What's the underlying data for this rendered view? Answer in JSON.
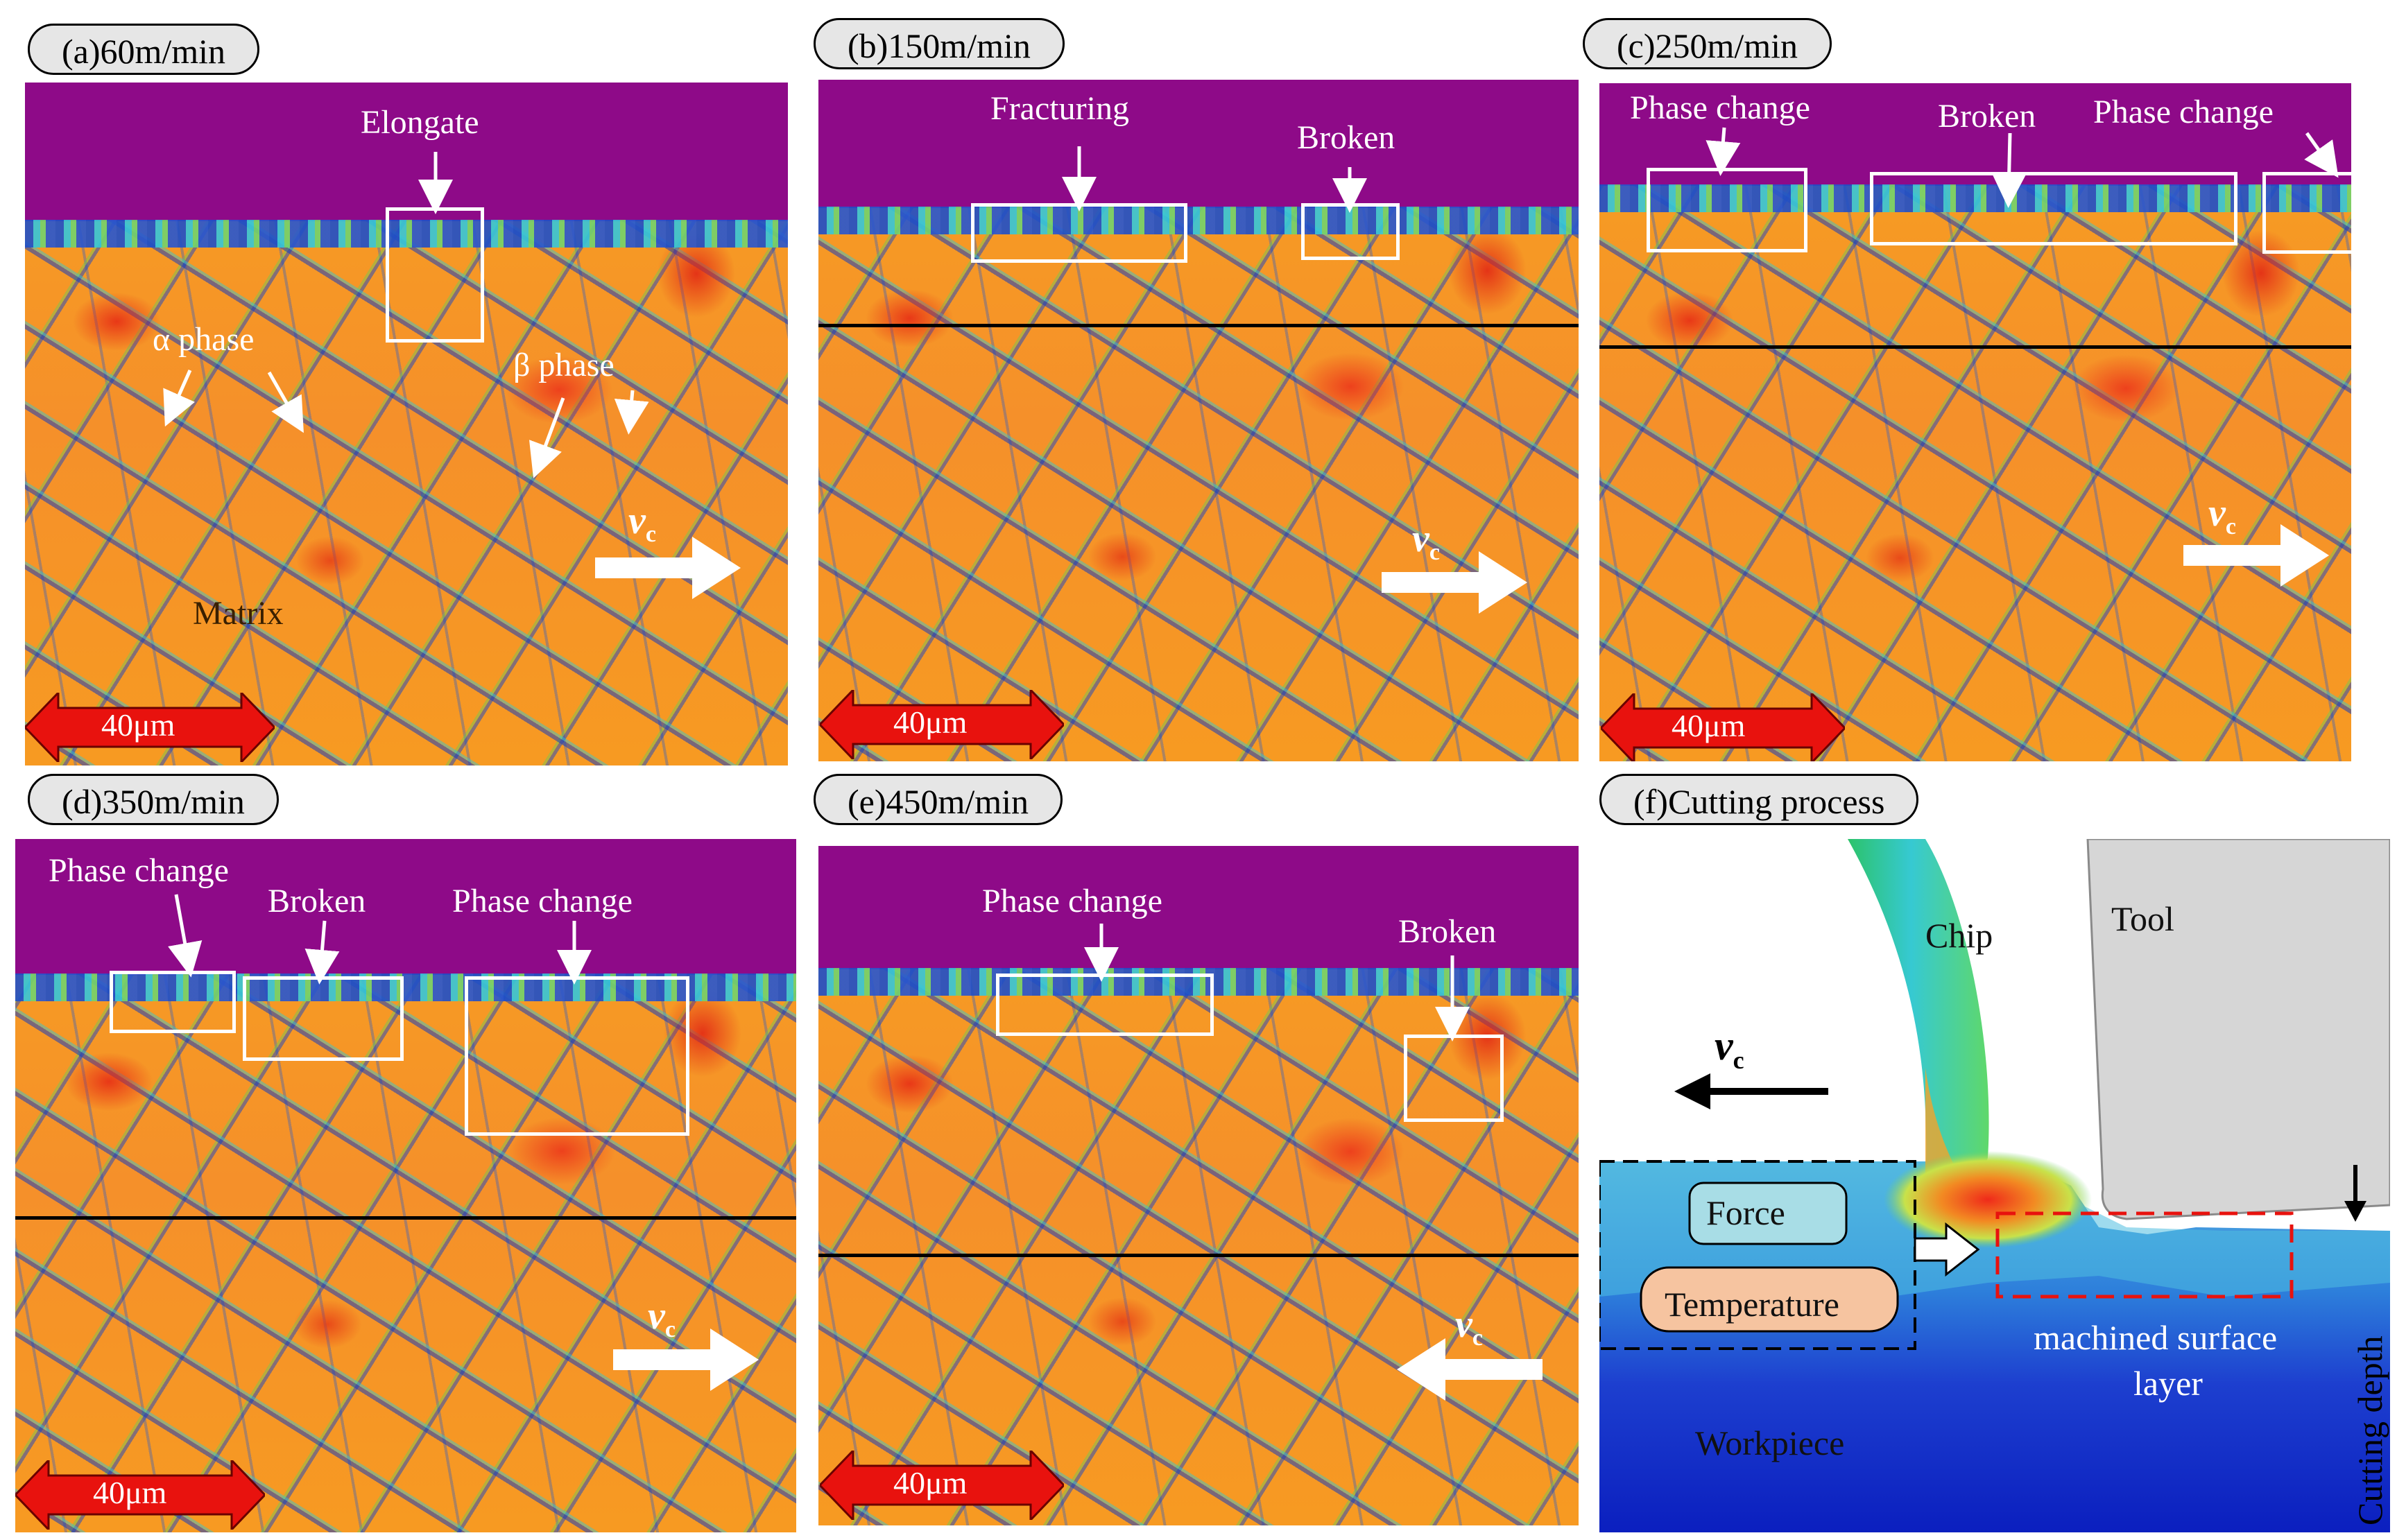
{
  "panels": {
    "a": {
      "label": "(a)60m/min",
      "annotations": {
        "elongate": "Elongate",
        "alpha_phase": "α phase",
        "beta_phase": "β phase",
        "matrix": "Matrix"
      },
      "scale_bar": "40μm",
      "velocity_symbol": "v",
      "velocity_sub": "c"
    },
    "b": {
      "label": "(b)150m/min",
      "annotations": {
        "fracturing": "Fracturing",
        "broken": "Broken"
      },
      "scale_bar": "40μm",
      "velocity_symbol": "v",
      "velocity_sub": "c"
    },
    "c": {
      "label": "(c)250m/min",
      "annotations": {
        "phase_change_left": "Phase change",
        "broken": "Broken",
        "phase_change_right": "Phase change"
      },
      "scale_bar": "40μm",
      "velocity_symbol": "v",
      "velocity_sub": "c"
    },
    "d": {
      "label": "(d)350m/min",
      "annotations": {
        "phase_change_left": "Phase change",
        "broken": "Broken",
        "phase_change_right": "Phase change"
      },
      "scale_bar": "40μm",
      "velocity_symbol": "v",
      "velocity_sub": "c"
    },
    "e": {
      "label": "(e)450m/min",
      "annotations": {
        "phase_change": "Phase change",
        "broken": "Broken"
      },
      "scale_bar": "40μm",
      "velocity_symbol": "v",
      "velocity_sub": "c"
    },
    "f": {
      "label": "(f)Cutting process",
      "labels": {
        "chip": "Chip",
        "tool": "Tool",
        "velocity_symbol": "v",
        "velocity_sub": "c",
        "force": "Force",
        "temperature": "Temperature",
        "machined_surface_line1": "machined surface",
        "machined_surface_line2": "layer",
        "workpiece": "Workpiece",
        "cutting_depth": "Cutting depth"
      }
    }
  },
  "colors": {
    "top_band": "#8e0a88",
    "grain_orange": "#f7a020",
    "grain_red": "#e6281a",
    "boundary_blue": "#1e4fc8",
    "scale_bar_red": "#e8120e",
    "force_fill": "#a8dde6",
    "temperature_fill": "#f6c4a0",
    "tool_gray": "#d6d6d6"
  }
}
